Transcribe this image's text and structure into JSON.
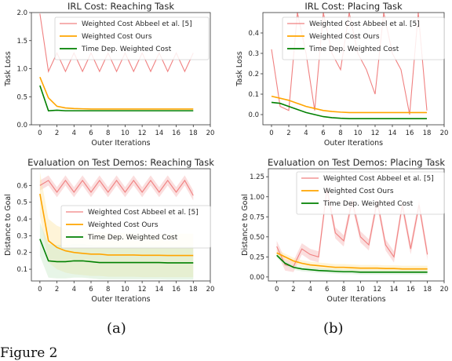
{
  "subfigure_labels": [
    "(a)",
    "(b)"
  ],
  "caption_fragment": "Figure 2",
  "colors": {
    "abbeel": "#f08080",
    "abbeel_band": "#f7b6b6",
    "ours": "#ffa500",
    "ours_band": "#fde6a8",
    "timedep": "#008000",
    "timedep_band": "#c9e8c9"
  },
  "chart_data": [
    {
      "id": "irl-reaching",
      "type": "line",
      "title": "IRL Cost: Reaching Task",
      "xlabel": "Outer Iterations",
      "ylabel": "Task Loss",
      "xlim": [
        -1,
        20
      ],
      "ylim": [
        0.0,
        2.0
      ],
      "xticks": [
        0,
        2,
        4,
        6,
        8,
        10,
        12,
        14,
        16,
        18,
        20
      ],
      "yticks": [
        0.0,
        0.5,
        1.0,
        1.5,
        2.0
      ],
      "ytick_labels": [
        "0.0",
        "0.5",
        "1.0",
        "1.5",
        "2.0"
      ],
      "grid": false,
      "legend": "top-right",
      "x": [
        0,
        1,
        2,
        3,
        4,
        5,
        6,
        7,
        8,
        9,
        10,
        11,
        12,
        13,
        14,
        15,
        16,
        17,
        18
      ],
      "series": [
        {
          "name": "Weighted Cost Abbeel et al. [5]",
          "color_key": "abbeel",
          "values": [
            1.98,
            0.95,
            1.28,
            0.95,
            1.28,
            0.95,
            1.28,
            0.95,
            1.28,
            0.95,
            1.28,
            0.95,
            1.28,
            0.95,
            1.28,
            0.95,
            1.28,
            0.95,
            1.28
          ]
        },
        {
          "name": "Weighted Cost Ours",
          "color_key": "ours",
          "values": [
            0.85,
            0.48,
            0.33,
            0.3,
            0.29,
            0.285,
            0.28,
            0.28,
            0.28,
            0.28,
            0.28,
            0.28,
            0.28,
            0.28,
            0.28,
            0.28,
            0.28,
            0.28,
            0.28
          ]
        },
        {
          "name": "Time Dep. Weighted Cost",
          "color_key": "timedep",
          "values": [
            0.7,
            0.25,
            0.26,
            0.25,
            0.25,
            0.25,
            0.25,
            0.25,
            0.25,
            0.25,
            0.25,
            0.25,
            0.25,
            0.25,
            0.25,
            0.25,
            0.25,
            0.25,
            0.25
          ]
        }
      ]
    },
    {
      "id": "irl-placing",
      "type": "line",
      "title": "IRL Cost: Placing Task",
      "xlabel": "Outer Iterations",
      "ylabel": "Task Loss",
      "xlim": [
        -1,
        20
      ],
      "ylim": [
        -0.05,
        0.5
      ],
      "xticks": [
        0,
        2,
        4,
        6,
        8,
        10,
        12,
        14,
        16,
        18,
        20
      ],
      "yticks": [
        0.0,
        0.1,
        0.2,
        0.3,
        0.4
      ],
      "ytick_labels": [
        "0.0",
        "0.1",
        "0.2",
        "0.3",
        "0.4"
      ],
      "grid": false,
      "legend": "top-right",
      "x": [
        0,
        1,
        2,
        3,
        4,
        5,
        6,
        7,
        8,
        9,
        10,
        11,
        12,
        13,
        14,
        15,
        16,
        17,
        18
      ],
      "series": [
        {
          "name": "Weighted Cost Abbeel et al. [5]",
          "color_key": "abbeel",
          "values": [
            0.32,
            0.04,
            0.02,
            0.5,
            0.3,
            0.02,
            0.5,
            0.3,
            0.22,
            0.5,
            0.3,
            0.22,
            0.1,
            0.5,
            0.3,
            0.22,
            0.0,
            0.5,
            0.02
          ]
        },
        {
          "name": "Weighted Cost Ours",
          "color_key": "ours",
          "values": [
            0.09,
            0.08,
            0.07,
            0.055,
            0.04,
            0.03,
            0.02,
            0.015,
            0.012,
            0.01,
            0.01,
            0.01,
            0.01,
            0.01,
            0.01,
            0.01,
            0.01,
            0.01,
            0.01
          ]
        },
        {
          "name": "Time Dep. Weighted Cost",
          "color_key": "timedep",
          "values": [
            0.06,
            0.055,
            0.04,
            0.025,
            0.01,
            0.0,
            -0.01,
            -0.015,
            -0.018,
            -0.02,
            -0.02,
            -0.02,
            -0.02,
            -0.02,
            -0.02,
            -0.02,
            -0.02,
            -0.02,
            -0.02
          ]
        }
      ]
    },
    {
      "id": "eval-reaching",
      "type": "line",
      "title": "Evaluation on Test Demos: Reaching Task",
      "xlabel": "Outer Iterations",
      "ylabel": "Distance to Goal",
      "xlim": [
        -1,
        20
      ],
      "ylim": [
        0.03,
        0.7
      ],
      "xticks": [
        0,
        2,
        4,
        6,
        8,
        10,
        12,
        14,
        16,
        18,
        20
      ],
      "yticks": [
        0.1,
        0.2,
        0.3,
        0.4,
        0.5,
        0.6
      ],
      "ytick_labels": [
        "0.1",
        "0.2",
        "0.3",
        "0.4",
        "0.5",
        "0.6"
      ],
      "grid": false,
      "legend": "center-right",
      "x": [
        0,
        1,
        2,
        3,
        4,
        5,
        6,
        7,
        8,
        9,
        10,
        11,
        12,
        13,
        14,
        15,
        16,
        17,
        18
      ],
      "series": [
        {
          "name": "Weighted Cost Abbeel et al. [5]",
          "color_key": "abbeel",
          "band": 0.03,
          "values": [
            0.6,
            0.63,
            0.56,
            0.63,
            0.56,
            0.63,
            0.56,
            0.63,
            0.56,
            0.63,
            0.56,
            0.63,
            0.56,
            0.63,
            0.56,
            0.63,
            0.56,
            0.63,
            0.54
          ]
        },
        {
          "name": "Weighted Cost Ours",
          "color_key": "ours",
          "band": 0.13,
          "values": [
            0.55,
            0.27,
            0.23,
            0.21,
            0.2,
            0.195,
            0.19,
            0.19,
            0.185,
            0.185,
            0.185,
            0.185,
            0.183,
            0.183,
            0.183,
            0.182,
            0.182,
            0.182,
            0.182
          ]
        },
        {
          "name": "Time Dep. Weighted Cost",
          "color_key": "timedep",
          "band": 0.1,
          "values": [
            0.28,
            0.15,
            0.145,
            0.145,
            0.15,
            0.15,
            0.145,
            0.14,
            0.14,
            0.14,
            0.14,
            0.14,
            0.14,
            0.14,
            0.14,
            0.138,
            0.138,
            0.138,
            0.138
          ]
        }
      ]
    },
    {
      "id": "eval-placing",
      "type": "line",
      "title": "Evaluation on Test Demos: Placing Task",
      "xlabel": "Outer Iterations",
      "ylabel": "Distance to Goal",
      "xlim": [
        -1,
        20
      ],
      "ylim": [
        -0.05,
        1.35
      ],
      "xticks": [
        0,
        2,
        4,
        6,
        8,
        10,
        12,
        14,
        16,
        18,
        20
      ],
      "yticks": [
        0.0,
        0.25,
        0.5,
        0.75,
        1.0,
        1.25
      ],
      "ytick_labels": [
        "0.00",
        "0.25",
        "0.50",
        "0.75",
        "1.00",
        "1.25"
      ],
      "grid": false,
      "legend": "top-right",
      "x": [
        0,
        1,
        2,
        3,
        4,
        5,
        6,
        7,
        8,
        9,
        10,
        11,
        12,
        13,
        14,
        15,
        16,
        17,
        18
      ],
      "series": [
        {
          "name": "Weighted Cost Abbeel et al. [5]",
          "color_key": "abbeel",
          "band": 0.07,
          "values": [
            0.38,
            0.15,
            0.13,
            0.35,
            0.28,
            0.25,
            1.1,
            0.55,
            0.45,
            0.95,
            0.5,
            0.4,
            0.95,
            0.4,
            0.25,
            0.9,
            0.35,
            0.9,
            0.28
          ]
        },
        {
          "name": "Weighted Cost Ours",
          "color_key": "ours",
          "band": 0.04,
          "values": [
            0.3,
            0.25,
            0.2,
            0.17,
            0.15,
            0.14,
            0.13,
            0.12,
            0.12,
            0.115,
            0.11,
            0.11,
            0.11,
            0.105,
            0.105,
            0.1,
            0.1,
            0.1,
            0.1
          ]
        },
        {
          "name": "Time Dep. Weighted Cost",
          "color_key": "timedep",
          "band": 0.03,
          "values": [
            0.27,
            0.17,
            0.12,
            0.1,
            0.09,
            0.08,
            0.075,
            0.07,
            0.065,
            0.065,
            0.06,
            0.06,
            0.06,
            0.06,
            0.06,
            0.06,
            0.06,
            0.06,
            0.06
          ]
        }
      ]
    }
  ]
}
